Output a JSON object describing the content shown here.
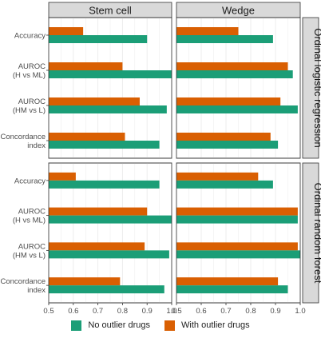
{
  "colors": {
    "no_outlier": "#1b9e77",
    "with_outlier": "#d95f02",
    "strip_fill": "#d9d9d9",
    "grid": "#ebebeb"
  },
  "legend": {
    "position": "bottom",
    "items": [
      {
        "label": "No outlier drugs",
        "color": "#1b9e77"
      },
      {
        "label": "With outlier drugs",
        "color": "#d95f02"
      }
    ]
  },
  "chart_data": {
    "type": "bar",
    "orientation": "horizontal",
    "facet_columns": [
      "Stem cell",
      "Wedge"
    ],
    "facet_rows": [
      "Ordinal logistic regression",
      "Ordinal random forest"
    ],
    "categories": [
      [
        "Accuracy"
      ],
      [
        "AUROC",
        "(H vs ML)"
      ],
      [
        "AUROC",
        "(HM vs L)"
      ],
      [
        "Concordance",
        "index"
      ]
    ],
    "x_ticks": [
      "0.5",
      "0.6",
      "0.7",
      "0.8",
      "0.9",
      "1.0"
    ],
    "xlim": [
      0.5,
      1.0
    ],
    "grid": true,
    "series": [
      {
        "name": "No outlier drugs"
      },
      {
        "name": "With outlier drugs"
      }
    ],
    "panels": [
      {
        "row": 0,
        "col": 0,
        "no_outlier": [
          0.9,
          1.0,
          0.98,
          0.95
        ],
        "with_outlier": [
          0.64,
          0.8,
          0.87,
          0.81
        ]
      },
      {
        "row": 0,
        "col": 1,
        "no_outlier": [
          0.89,
          0.97,
          0.99,
          0.91
        ],
        "with_outlier": [
          0.75,
          0.95,
          0.92,
          0.88
        ]
      },
      {
        "row": 1,
        "col": 0,
        "no_outlier": [
          0.95,
          1.0,
          0.99,
          0.97
        ],
        "with_outlier": [
          0.61,
          0.9,
          0.89,
          0.79
        ]
      },
      {
        "row": 1,
        "col": 1,
        "no_outlier": [
          0.89,
          0.99,
          1.0,
          0.95
        ],
        "with_outlier": [
          0.83,
          0.99,
          0.99,
          0.91
        ]
      }
    ]
  }
}
